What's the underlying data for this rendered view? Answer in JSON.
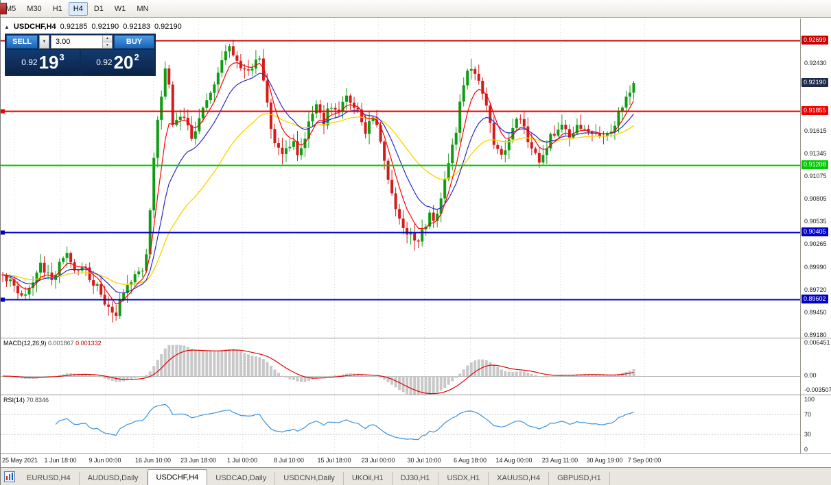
{
  "toolbar": {
    "timeframes": [
      "M5",
      "M30",
      "H1",
      "H4",
      "D1",
      "W1",
      "MN"
    ],
    "active": "H4"
  },
  "chart": {
    "header": {
      "collapse_icon": "▲",
      "symbol": "USDCHF,H4",
      "open": "0.92185",
      "high": "0.92190",
      "low": "0.92183",
      "close": "0.92190"
    },
    "trade_panel": {
      "sell_label": "SELL",
      "buy_label": "BUY",
      "volume": "3.00",
      "dropdown_icon": "▼",
      "bid": {
        "prefix": "0.92",
        "big": "19",
        "sup": "3"
      },
      "ask": {
        "prefix": "0.92",
        "big": "20",
        "sup": "2"
      }
    },
    "levels": [
      {
        "label": "0.92699",
        "value": 0.92699,
        "color": "#c80000",
        "edge_mark": false
      },
      {
        "label": "0.91855",
        "value": 0.91855,
        "color": "#ee0000",
        "edge_mark": true
      },
      {
        "label": "0.91208",
        "value": 0.91208,
        "color": "#00ca00",
        "edge_mark": false
      },
      {
        "label": "0.90405",
        "value": 0.90405,
        "color": "#0000c8",
        "edge_mark": true
      },
      {
        "label": "0.89602",
        "value": 0.89602,
        "color": "#0000c8",
        "edge_mark": true
      }
    ],
    "price_scale": {
      "ticks": [
        {
          "label": "0.92430",
          "value": 0.9243
        },
        {
          "label": "0.91615",
          "value": 0.91615
        },
        {
          "label": "0.91345",
          "value": 0.91345
        },
        {
          "label": "0.91075",
          "value": 0.91075
        },
        {
          "label": "0.90805",
          "value": 0.90805
        },
        {
          "label": "0.90535",
          "value": 0.90535
        },
        {
          "label": "0.90265",
          "value": 0.90265
        },
        {
          "label": "0.89990",
          "value": 0.8999
        },
        {
          "label": "0.89720",
          "value": 0.8972
        },
        {
          "label": "0.89450",
          "value": 0.8945
        },
        {
          "label": "0.89180",
          "value": 0.8918
        }
      ],
      "current_price": {
        "label": "0.92190",
        "value": 0.9219,
        "bg": "#1c2b4a"
      }
    }
  },
  "indicators": {
    "macd": {
      "name": "MACD(12,26,9)",
      "value1": "0.001867",
      "value2": "0.001332",
      "scale_labels": [
        "0.006451",
        "0.00",
        "-0.003507"
      ],
      "scale_max": 0.006451,
      "scale_min": -0.003507
    },
    "rsi": {
      "name": "RSI(14)",
      "value": "70.8346",
      "scale_labels": [
        "100",
        "70",
        "30",
        "0"
      ],
      "levels": [
        70,
        30
      ]
    }
  },
  "time_axis": {
    "labels": [
      "25 May 2021",
      "1 Jun 18:00",
      "9 Jun 00:00",
      "16 Jun 10:00",
      "23 Jun 18:00",
      "1 Jul 00:00",
      "8 Jul 10:00",
      "15 Jul 18:00",
      "23 Jul 00:00",
      "30 Jul 10:00",
      "6 Aug 18:00",
      "14 Aug 00:00",
      "23 Aug 11:00",
      "30 Aug 19:00",
      "7 Sep 00:00"
    ],
    "x": [
      20,
      87,
      152,
      222,
      288,
      352,
      420,
      486,
      550,
      617,
      684,
      748,
      815,
      880,
      938
    ]
  },
  "tabs": {
    "items": [
      "EURUSD,H4",
      "AUDUSD,Daily",
      "USDCHF,H4",
      "USDCAD,Daily",
      "USDCNH,Daily",
      "UKOil,H1",
      "DJ30,H1",
      "USDX,H1",
      "XAUUSD,H4",
      "GBPUSD,H1"
    ],
    "active_index": 2
  },
  "chart_data": {
    "type": "candlestick",
    "symbol": "USDCHF",
    "timeframe": "H4",
    "ohlc_current": {
      "open": 0.92185,
      "high": 0.9219,
      "low": 0.92183,
      "close": 0.9219
    },
    "last_close": 0.9219,
    "y_axis": {
      "top": 0.92961,
      "bottom": 0.89144
    },
    "bars": 168,
    "candles_width": 925,
    "horizontal_levels": [
      0.92699,
      0.91855,
      0.91208,
      0.90405,
      0.89602
    ],
    "moving_averages": [
      {
        "period": 34,
        "color": "#ffd400",
        "width": 1.4
      },
      {
        "period": 14,
        "color": "#2828c8",
        "width": 1.2
      },
      {
        "period": 6,
        "color": "#ff0000",
        "width": 1.2
      }
    ],
    "indicator_values": [
      {
        "name": "MACD",
        "params": [
          12,
          26,
          9
        ],
        "values": [
          0.001867,
          0.001332
        ],
        "scale": [
          0.006451,
          0,
          -0.003507
        ]
      },
      {
        "name": "RSI",
        "params": [
          14
        ],
        "value": 70.8346,
        "scale": [
          100,
          70,
          30,
          0
        ]
      }
    ],
    "colors": {
      "bull": "#0f9b12",
      "bear": "#d41c1c",
      "grid": "#dcdcdc",
      "macd_hist": "#c8c8c8",
      "macd_signal": "#dd0000",
      "rsi_line": "#3892dc"
    },
    "price_path": [
      [
        0.0,
        0.899
      ],
      [
        0.02,
        0.8975
      ],
      [
        0.033,
        0.8962
      ],
      [
        0.05,
        0.8988
      ],
      [
        0.06,
        0.9
      ],
      [
        0.08,
        0.8985
      ],
      [
        0.1,
        0.9022
      ],
      [
        0.112,
        0.9
      ],
      [
        0.13,
        0.8995
      ],
      [
        0.145,
        0.898
      ],
      [
        0.165,
        0.8955
      ],
      [
        0.18,
        0.8945
      ],
      [
        0.2,
        0.8985
      ],
      [
        0.215,
        0.8988
      ],
      [
        0.228,
        0.901
      ],
      [
        0.238,
        0.912
      ],
      [
        0.248,
        0.919
      ],
      [
        0.259,
        0.9245
      ],
      [
        0.27,
        0.9165
      ],
      [
        0.286,
        0.918
      ],
      [
        0.3,
        0.915
      ],
      [
        0.313,
        0.918
      ],
      [
        0.335,
        0.9215
      ],
      [
        0.357,
        0.9268
      ],
      [
        0.373,
        0.9245
      ],
      [
        0.389,
        0.9228
      ],
      [
        0.405,
        0.9258
      ],
      [
        0.416,
        0.9215
      ],
      [
        0.427,
        0.916
      ],
      [
        0.443,
        0.913
      ],
      [
        0.459,
        0.915
      ],
      [
        0.47,
        0.9128
      ],
      [
        0.481,
        0.916
      ],
      [
        0.497,
        0.9195
      ],
      [
        0.508,
        0.917
      ],
      [
        0.519,
        0.9195
      ],
      [
        0.53,
        0.918
      ],
      [
        0.546,
        0.9205
      ],
      [
        0.562,
        0.9185
      ],
      [
        0.573,
        0.916
      ],
      [
        0.589,
        0.918
      ],
      [
        0.6,
        0.915
      ],
      [
        0.611,
        0.91
      ],
      [
        0.622,
        0.907
      ],
      [
        0.638,
        0.9045
      ],
      [
        0.654,
        0.903
      ],
      [
        0.665,
        0.904
      ],
      [
        0.676,
        0.9062
      ],
      [
        0.686,
        0.9048
      ],
      [
        0.697,
        0.909
      ],
      [
        0.708,
        0.913
      ],
      [
        0.719,
        0.916
      ],
      [
        0.724,
        0.92
      ],
      [
        0.735,
        0.9228
      ],
      [
        0.746,
        0.9238
      ],
      [
        0.757,
        0.9215
      ],
      [
        0.768,
        0.9185
      ],
      [
        0.778,
        0.915
      ],
      [
        0.789,
        0.9132
      ],
      [
        0.8,
        0.9145
      ],
      [
        0.811,
        0.917
      ],
      [
        0.822,
        0.9178
      ],
      [
        0.832,
        0.915
      ],
      [
        0.843,
        0.9132
      ],
      [
        0.854,
        0.9122
      ],
      [
        0.865,
        0.915
      ],
      [
        0.876,
        0.916
      ],
      [
        0.886,
        0.9172
      ],
      [
        0.897,
        0.915
      ],
      [
        0.908,
        0.9162
      ],
      [
        0.919,
        0.9172
      ],
      [
        0.93,
        0.9155
      ],
      [
        0.941,
        0.9162
      ],
      [
        0.951,
        0.915
      ],
      [
        0.962,
        0.9162
      ],
      [
        0.973,
        0.9172
      ],
      [
        0.984,
        0.92
      ],
      [
        1.0,
        0.9219
      ]
    ]
  }
}
